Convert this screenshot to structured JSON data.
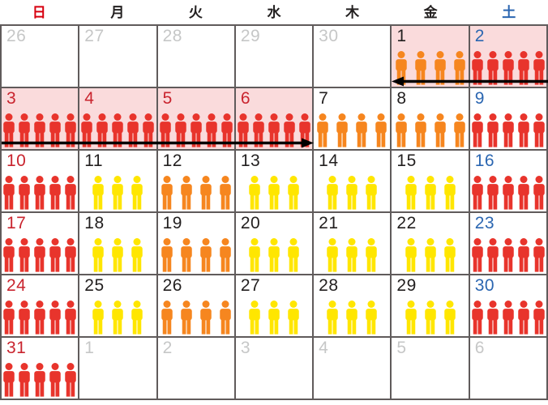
{
  "calendar": {
    "weekdays": [
      {
        "label": "日",
        "color": "#d7000f"
      },
      {
        "label": "月",
        "color": "#221f1f"
      },
      {
        "label": "火",
        "color": "#221f1f"
      },
      {
        "label": "水",
        "color": "#221f1f"
      },
      {
        "label": "木",
        "color": "#221f1f"
      },
      {
        "label": "金",
        "color": "#221f1f"
      },
      {
        "label": "土",
        "color": "#2b66b1"
      }
    ],
    "number_colors": {
      "red": "#c9242e",
      "blue": "#2b66b1",
      "black": "#221f1f",
      "gray": "#c6c7c7"
    },
    "crowd_colors": {
      "red": "#e8342c",
      "orange": "#f6861f",
      "yellow": "#ffe600"
    },
    "highlight_color": "#fadbdc",
    "grid_line_color": "#605b5b",
    "days": [
      {
        "date": "26",
        "color": "gray",
        "people": 0,
        "crowd": null,
        "highlight": false
      },
      {
        "date": "27",
        "color": "gray",
        "people": 0,
        "crowd": null,
        "highlight": false
      },
      {
        "date": "28",
        "color": "gray",
        "people": 0,
        "crowd": null,
        "highlight": false
      },
      {
        "date": "29",
        "color": "gray",
        "people": 0,
        "crowd": null,
        "highlight": false
      },
      {
        "date": "30",
        "color": "gray",
        "people": 0,
        "crowd": null,
        "highlight": false
      },
      {
        "date": "1",
        "color": "black",
        "people": 4,
        "crowd": "orange",
        "highlight": true
      },
      {
        "date": "2",
        "color": "blue",
        "people": 5,
        "crowd": "red",
        "highlight": true
      },
      {
        "date": "3",
        "color": "red",
        "people": 5,
        "crowd": "red",
        "highlight": true
      },
      {
        "date": "4",
        "color": "red",
        "people": 5,
        "crowd": "red",
        "highlight": true
      },
      {
        "date": "5",
        "color": "red",
        "people": 5,
        "crowd": "red",
        "highlight": true
      },
      {
        "date": "6",
        "color": "red",
        "people": 5,
        "crowd": "red",
        "highlight": true
      },
      {
        "date": "7",
        "color": "black",
        "people": 4,
        "crowd": "orange",
        "highlight": false
      },
      {
        "date": "8",
        "color": "black",
        "people": 4,
        "crowd": "orange",
        "highlight": false
      },
      {
        "date": "9",
        "color": "blue",
        "people": 5,
        "crowd": "red",
        "highlight": false
      },
      {
        "date": "10",
        "color": "red",
        "people": 5,
        "crowd": "red",
        "highlight": false
      },
      {
        "date": "11",
        "color": "black",
        "people": 3,
        "crowd": "yellow",
        "highlight": false
      },
      {
        "date": "12",
        "color": "black",
        "people": 4,
        "crowd": "orange",
        "highlight": false
      },
      {
        "date": "13",
        "color": "black",
        "people": 3,
        "crowd": "yellow",
        "highlight": false
      },
      {
        "date": "14",
        "color": "black",
        "people": 3,
        "crowd": "yellow",
        "highlight": false
      },
      {
        "date": "15",
        "color": "black",
        "people": 3,
        "crowd": "yellow",
        "highlight": false
      },
      {
        "date": "16",
        "color": "blue",
        "people": 5,
        "crowd": "red",
        "highlight": false
      },
      {
        "date": "17",
        "color": "red",
        "people": 5,
        "crowd": "red",
        "highlight": false
      },
      {
        "date": "18",
        "color": "black",
        "people": 3,
        "crowd": "yellow",
        "highlight": false
      },
      {
        "date": "19",
        "color": "black",
        "people": 4,
        "crowd": "orange",
        "highlight": false
      },
      {
        "date": "20",
        "color": "black",
        "people": 3,
        "crowd": "yellow",
        "highlight": false
      },
      {
        "date": "21",
        "color": "black",
        "people": 3,
        "crowd": "yellow",
        "highlight": false
      },
      {
        "date": "22",
        "color": "black",
        "people": 3,
        "crowd": "yellow",
        "highlight": false
      },
      {
        "date": "23",
        "color": "blue",
        "people": 5,
        "crowd": "red",
        "highlight": false
      },
      {
        "date": "24",
        "color": "red",
        "people": 5,
        "crowd": "red",
        "highlight": false
      },
      {
        "date": "25",
        "color": "black",
        "people": 3,
        "crowd": "yellow",
        "highlight": false
      },
      {
        "date": "26",
        "color": "black",
        "people": 4,
        "crowd": "orange",
        "highlight": false
      },
      {
        "date": "27",
        "color": "black",
        "people": 3,
        "crowd": "yellow",
        "highlight": false
      },
      {
        "date": "28",
        "color": "black",
        "people": 3,
        "crowd": "yellow",
        "highlight": false
      },
      {
        "date": "29",
        "color": "black",
        "people": 3,
        "crowd": "yellow",
        "highlight": false
      },
      {
        "date": "30",
        "color": "blue",
        "people": 5,
        "crowd": "red",
        "highlight": false
      },
      {
        "date": "31",
        "color": "red",
        "people": 5,
        "crowd": "red",
        "highlight": false
      },
      {
        "date": "1",
        "color": "gray",
        "people": 0,
        "crowd": null,
        "highlight": false
      },
      {
        "date": "2",
        "color": "gray",
        "people": 0,
        "crowd": null,
        "highlight": false
      },
      {
        "date": "3",
        "color": "gray",
        "people": 0,
        "crowd": null,
        "highlight": false
      },
      {
        "date": "4",
        "color": "gray",
        "people": 0,
        "crowd": null,
        "highlight": false
      },
      {
        "date": "5",
        "color": "gray",
        "people": 0,
        "crowd": null,
        "highlight": false
      },
      {
        "date": "6",
        "color": "gray",
        "people": 0,
        "crowd": null,
        "highlight": false
      }
    ],
    "arrows": [
      {
        "name": "holiday-span-arrow-left",
        "direction": "left",
        "covers_dates": [
          1,
          2
        ]
      },
      {
        "name": "holiday-span-arrow-right",
        "direction": "right",
        "covers_dates": [
          3,
          4,
          5,
          6
        ]
      }
    ]
  },
  "chart_data": {
    "type": "heatmap",
    "title": "",
    "weekday_labels": [
      "日",
      "月",
      "火",
      "水",
      "木",
      "金",
      "土"
    ],
    "prev_month_days_shown": [
      26,
      27,
      28,
      29,
      30
    ],
    "next_month_days_shown": [
      1,
      2,
      3,
      4,
      5,
      6
    ],
    "highlighted_dates": [
      1,
      2,
      3,
      4,
      5,
      6
    ],
    "crowd_levels": {
      "red": "5 icons",
      "orange": "4 icons",
      "yellow": "3 icons"
    },
    "days": [
      {
        "date": 1,
        "icons": 4,
        "level": "orange"
      },
      {
        "date": 2,
        "icons": 5,
        "level": "red"
      },
      {
        "date": 3,
        "icons": 5,
        "level": "red"
      },
      {
        "date": 4,
        "icons": 5,
        "level": "red"
      },
      {
        "date": 5,
        "icons": 5,
        "level": "red"
      },
      {
        "date": 6,
        "icons": 5,
        "level": "red"
      },
      {
        "date": 7,
        "icons": 4,
        "level": "orange"
      },
      {
        "date": 8,
        "icons": 4,
        "level": "orange"
      },
      {
        "date": 9,
        "icons": 5,
        "level": "red"
      },
      {
        "date": 10,
        "icons": 5,
        "level": "red"
      },
      {
        "date": 11,
        "icons": 3,
        "level": "yellow"
      },
      {
        "date": 12,
        "icons": 4,
        "level": "orange"
      },
      {
        "date": 13,
        "icons": 3,
        "level": "yellow"
      },
      {
        "date": 14,
        "icons": 3,
        "level": "yellow"
      },
      {
        "date": 15,
        "icons": 3,
        "level": "yellow"
      },
      {
        "date": 16,
        "icons": 5,
        "level": "red"
      },
      {
        "date": 17,
        "icons": 5,
        "level": "red"
      },
      {
        "date": 18,
        "icons": 3,
        "level": "yellow"
      },
      {
        "date": 19,
        "icons": 4,
        "level": "orange"
      },
      {
        "date": 20,
        "icons": 3,
        "level": "yellow"
      },
      {
        "date": 21,
        "icons": 3,
        "level": "yellow"
      },
      {
        "date": 22,
        "icons": 3,
        "level": "yellow"
      },
      {
        "date": 23,
        "icons": 5,
        "level": "red"
      },
      {
        "date": 24,
        "icons": 5,
        "level": "red"
      },
      {
        "date": 25,
        "icons": 3,
        "level": "yellow"
      },
      {
        "date": 26,
        "icons": 4,
        "level": "orange"
      },
      {
        "date": 27,
        "icons": 3,
        "level": "yellow"
      },
      {
        "date": 28,
        "icons": 3,
        "level": "yellow"
      },
      {
        "date": 29,
        "icons": 3,
        "level": "yellow"
      },
      {
        "date": 30,
        "icons": 5,
        "level": "red"
      },
      {
        "date": 31,
        "icons": 5,
        "level": "red"
      }
    ]
  }
}
